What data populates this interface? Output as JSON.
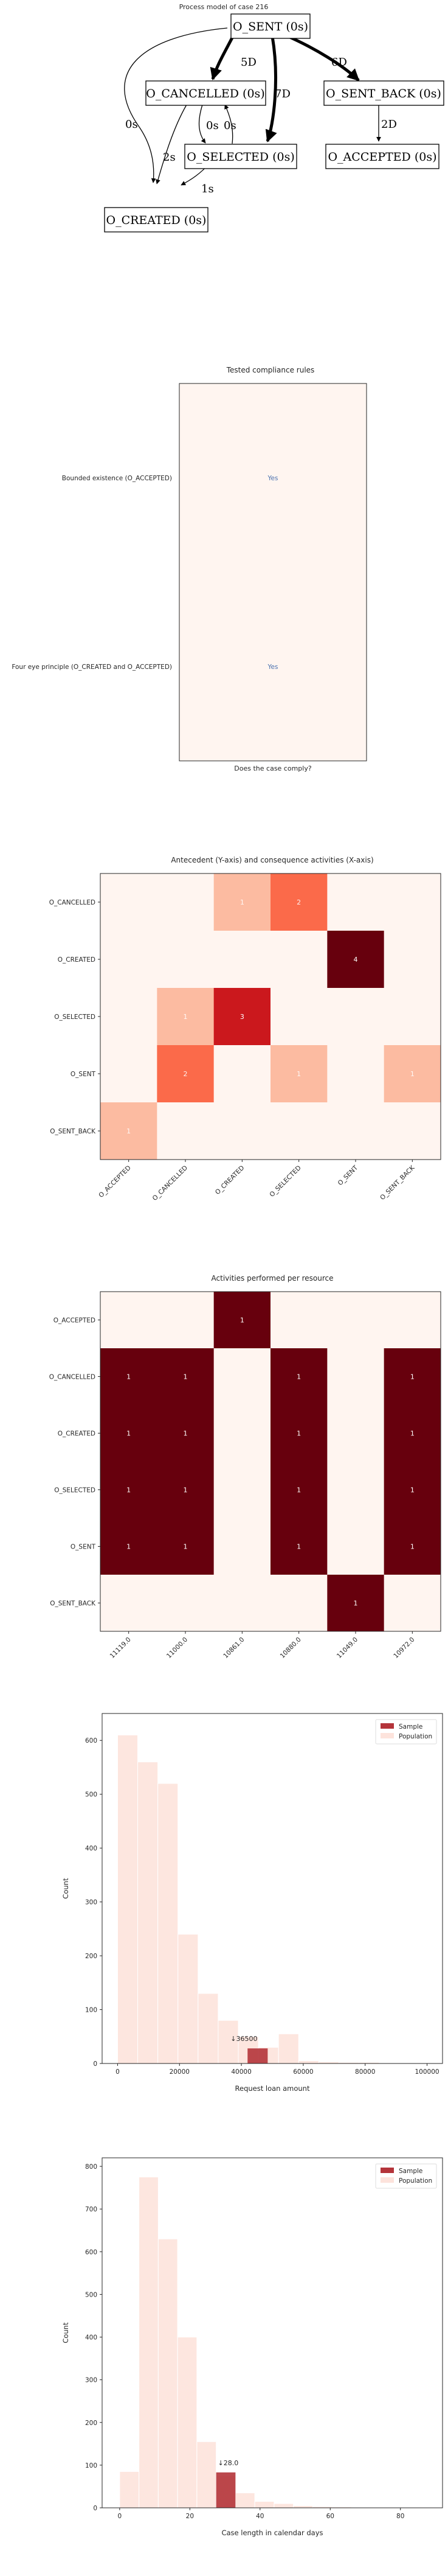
{
  "process_model": {
    "title": "Process model of case 216",
    "nodes": [
      {
        "id": "sent",
        "label": "O_SENT (0s)"
      },
      {
        "id": "cancelled",
        "label": "O_CANCELLED (0s)"
      },
      {
        "id": "sent_back",
        "label": "O_SENT_BACK (0s)"
      },
      {
        "id": "selected",
        "label": "O_SELECTED (0s)"
      },
      {
        "id": "accepted",
        "label": "O_ACCEPTED (0s)"
      },
      {
        "id": "created",
        "label": "O_CREATED (0s)"
      }
    ],
    "edges": [
      {
        "from": "sent",
        "to": "cancelled",
        "label": "5D"
      },
      {
        "from": "sent",
        "to": "selected",
        "label": "7D"
      },
      {
        "from": "sent",
        "to": "sent_back",
        "label": "6D"
      },
      {
        "from": "sent",
        "to": "created",
        "label": "0s"
      },
      {
        "from": "cancelled",
        "to": "selected",
        "label": "0s"
      },
      {
        "from": "selected",
        "to": "cancelled",
        "label": "0s"
      },
      {
        "from": "cancelled",
        "to": "created",
        "label": "2s"
      },
      {
        "from": "selected",
        "to": "created",
        "label": "1s"
      },
      {
        "from": "sent_back",
        "to": "accepted",
        "label": "2D"
      }
    ]
  },
  "chart_data": [
    {
      "type": "table",
      "title": "Tested compliance rules",
      "xlabel": "Does the case comply?",
      "rows": [
        "Bounded existence (O_ACCEPTED)",
        "Four eye principle (O_CREATED and O_ACCEPTED)"
      ],
      "values": [
        "Yes",
        "Yes"
      ],
      "colors": {
        "cell": "#fff5f0",
        "text": "#4c72b0"
      }
    },
    {
      "type": "heatmap",
      "title": "Antecedent (Y-axis) and consequence activities (X-axis)",
      "ylabels": [
        "O_CANCELLED",
        "O_CREATED",
        "O_SELECTED",
        "O_SENT",
        "O_SENT_BACK"
      ],
      "xlabels": [
        "O_ACCEPTED",
        "O_CANCELLED",
        "O_CREATED",
        "O_SELECTED",
        "O_SENT",
        "O_SENT_BACK"
      ],
      "values": [
        [
          0,
          0,
          1,
          2,
          0,
          0
        ],
        [
          0,
          0,
          0,
          0,
          4,
          0
        ],
        [
          0,
          1,
          3,
          0,
          0,
          0
        ],
        [
          0,
          2,
          0,
          1,
          0,
          1
        ],
        [
          1,
          0,
          0,
          0,
          0,
          0
        ]
      ],
      "vmax": 4,
      "colormap": "Reds"
    },
    {
      "type": "heatmap",
      "title": "Activities performed per resource",
      "ylabels": [
        "O_ACCEPTED",
        "O_CANCELLED",
        "O_CREATED",
        "O_SELECTED",
        "O_SENT",
        "O_SENT_BACK"
      ],
      "xlabels": [
        "11119.0",
        "11000.0",
        "10861.0",
        "10880.0",
        "11049.0",
        "10972.0"
      ],
      "values": [
        [
          0,
          0,
          1,
          0,
          0,
          0
        ],
        [
          1,
          1,
          0,
          1,
          0,
          1
        ],
        [
          1,
          1,
          0,
          1,
          0,
          1
        ],
        [
          1,
          1,
          0,
          1,
          0,
          1
        ],
        [
          1,
          1,
          0,
          1,
          0,
          1
        ],
        [
          0,
          0,
          0,
          0,
          1,
          0
        ]
      ],
      "vmax": 1,
      "colormap": "Reds"
    },
    {
      "type": "bar",
      "xlabel": "Request loan amount",
      "ylabel": "Count",
      "xlim": [
        -5000,
        105000
      ],
      "ylim": [
        0,
        650
      ],
      "xticks": [
        "0",
        "20000",
        "40000",
        "60000",
        "80000",
        "100000"
      ],
      "yticks": [
        "0",
        "100",
        "200",
        "300",
        "400",
        "500",
        "600"
      ],
      "bin_width": 6500,
      "population": {
        "name": "Population",
        "bins_start": [
          0,
          6500,
          13000,
          19500,
          26000,
          32500,
          39000,
          45500,
          52000,
          58500,
          65000,
          71500,
          78000,
          84500,
          91000,
          97500
        ],
        "values": [
          610,
          560,
          520,
          240,
          130,
          80,
          50,
          30,
          55,
          5,
          3,
          2,
          2,
          1,
          1,
          1
        ]
      },
      "sample": {
        "name": "Sample",
        "bin_start": 42000,
        "value": 28
      },
      "annotation": "↓36500",
      "annotation_x": 36500,
      "legend_position": "top-right",
      "colors": {
        "population": "#fde3dc",
        "sample": "#b4343a"
      }
    },
    {
      "type": "bar",
      "xlabel": "Case length in calendar days",
      "ylabel": "Count",
      "xlim": [
        -5,
        92
      ],
      "ylim": [
        0,
        820
      ],
      "xticks": [
        "0",
        "20",
        "40",
        "60",
        "80"
      ],
      "yticks": [
        "0",
        "100",
        "200",
        "300",
        "400",
        "500",
        "600",
        "700",
        "800"
      ],
      "bin_width": 5.5,
      "population": {
        "name": "Population",
        "bins_start": [
          0,
          5.5,
          11,
          16.5,
          22,
          27.5,
          33,
          38.5,
          44,
          49.5,
          55,
          60.5,
          66,
          71.5,
          77,
          82.5
        ],
        "values": [
          85,
          775,
          630,
          400,
          155,
          75,
          35,
          15,
          10,
          5,
          3,
          2,
          1,
          1,
          1,
          1
        ]
      },
      "sample": {
        "name": "Sample",
        "bin_start": 27.5,
        "value": 83
      },
      "annotation": "↓28.0",
      "annotation_x": 28,
      "legend_position": "top-right",
      "colors": {
        "population": "#fde3dc",
        "sample": "#b4343a"
      }
    }
  ]
}
